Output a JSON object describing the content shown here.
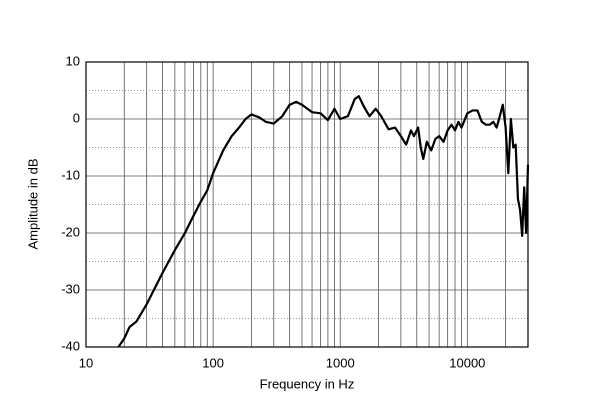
{
  "chart_data": {
    "type": "line",
    "x_label": "Frequency in Hz",
    "y_label": "Amplitude in dB",
    "x_log": true,
    "grid": true,
    "xlim": [
      10,
      30000
    ],
    "ylim": [
      -40,
      10
    ],
    "xticks": [
      10,
      100,
      1000,
      10000
    ],
    "yticks": [
      10,
      0,
      -10,
      -20,
      -30,
      -40
    ],
    "minor_xticks": [
      20,
      30,
      40,
      50,
      60,
      70,
      80,
      90,
      200,
      300,
      400,
      500,
      600,
      700,
      800,
      900,
      2000,
      3000,
      4000,
      5000,
      6000,
      7000,
      8000,
      9000,
      20000
    ],
    "minor_yticks": [
      5,
      -5,
      -15,
      -25,
      -35
    ],
    "x": [
      18,
      20,
      22,
      25,
      30,
      40,
      50,
      60,
      70,
      80,
      90,
      100,
      120,
      140,
      160,
      180,
      200,
      230,
      260,
      300,
      350,
      400,
      450,
      500,
      600,
      700,
      800,
      900,
      1000,
      1150,
      1300,
      1400,
      1550,
      1700,
      1900,
      2100,
      2400,
      2700,
      3000,
      3300,
      3600,
      3800,
      4100,
      4300,
      4500,
      4800,
      5200,
      5600,
      6000,
      6500,
      7000,
      7500,
      8000,
      8500,
      9000,
      10000,
      11000,
      12000,
      13000,
      14000,
      15000,
      16000,
      17000,
      18000,
      19000,
      20000,
      21000,
      22000,
      23000,
      24000,
      25000,
      26000,
      27000,
      28000,
      29000,
      30000
    ],
    "series": [
      {
        "color": "#000000",
        "values": [
          -40,
          -38.5,
          -36.5,
          -35.5,
          -32.5,
          -27,
          -23,
          -20,
          -17,
          -14.5,
          -12.5,
          -9.5,
          -5.5,
          -3,
          -1.5,
          0,
          0.8,
          0.3,
          -0.5,
          -0.8,
          0.5,
          2.5,
          3,
          2.5,
          1.2,
          1,
          -0.2,
          1.8,
          0,
          0.5,
          3.5,
          4,
          2,
          0.5,
          1.8,
          0.5,
          -1.8,
          -1.5,
          -3,
          -4.5,
          -2,
          -3,
          -1.5,
          -5,
          -7,
          -4,
          -5.5,
          -3.5,
          -3,
          -4,
          -2,
          -1,
          -2,
          -0.5,
          -1.5,
          1,
          1.5,
          1.5,
          -0.5,
          -1,
          -1,
          -0.5,
          -1.5,
          0.5,
          2.5,
          -1.5,
          -9.5,
          0,
          -5,
          -4.5,
          -14,
          -16,
          -20.5,
          -12,
          -20,
          -8
        ]
      }
    ]
  }
}
